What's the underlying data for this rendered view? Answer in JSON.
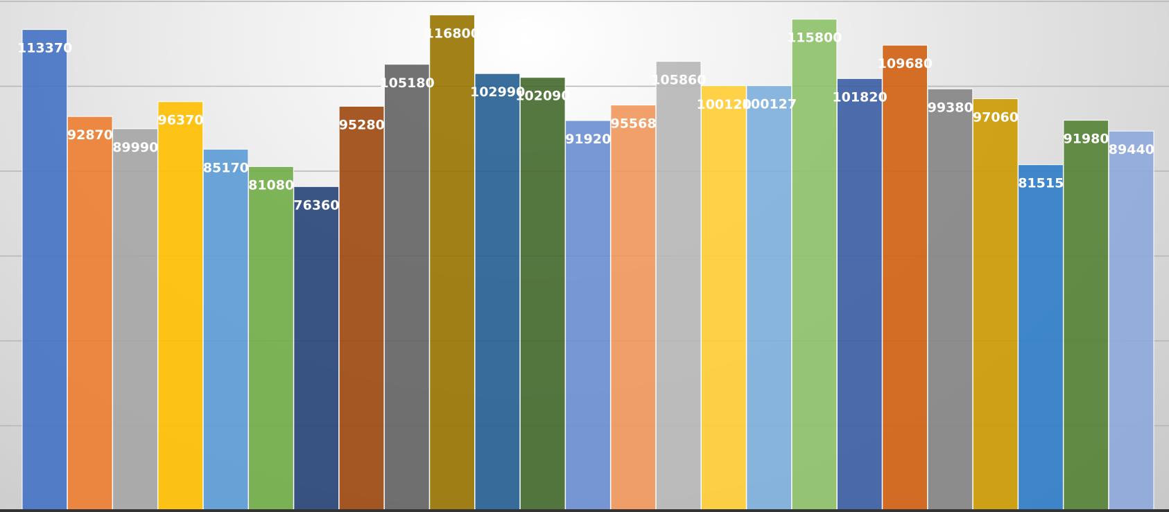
{
  "chart_data": {
    "type": "bar",
    "title": "",
    "xlabel": "",
    "ylabel": "",
    "ylim": [
      0,
      120000
    ],
    "grid": true,
    "legend": "none",
    "values": [
      113370,
      92870,
      89990,
      96370,
      85170,
      81080,
      76360,
      95280,
      105180,
      116800,
      102990,
      102090,
      91920,
      95568,
      105860,
      100120,
      100127,
      115800,
      101820,
      109680,
      99380,
      97060,
      81515,
      91980,
      89440
    ],
    "labels": [
      "113370",
      "92870",
      "89990",
      "96370",
      "85170",
      "81080",
      "76360",
      "95280",
      "105180",
      "116800",
      "102990",
      "102090",
      "91920",
      "95568",
      "105860",
      "100120",
      "100127",
      "115800",
      "101820",
      "109680",
      "99380",
      "97060",
      "81515",
      "91980",
      "89440"
    ],
    "colors": [
      "#4472C4",
      "#ED7D31",
      "#A5A5A5",
      "#FFC000",
      "#5B9BD5",
      "#70AD47",
      "#264478",
      "#9E480E",
      "#636363",
      "#997300",
      "#255E91",
      "#43682B",
      "#698ED0",
      "#F1975A",
      "#B7B7B7",
      "#FFCD33",
      "#7CAFDD",
      "#8CC168",
      "#3A5DA4",
      "#D26012",
      "#848484",
      "#CC9A00",
      "#2E7DC8",
      "#548235",
      "#8EA9DB"
    ]
  }
}
